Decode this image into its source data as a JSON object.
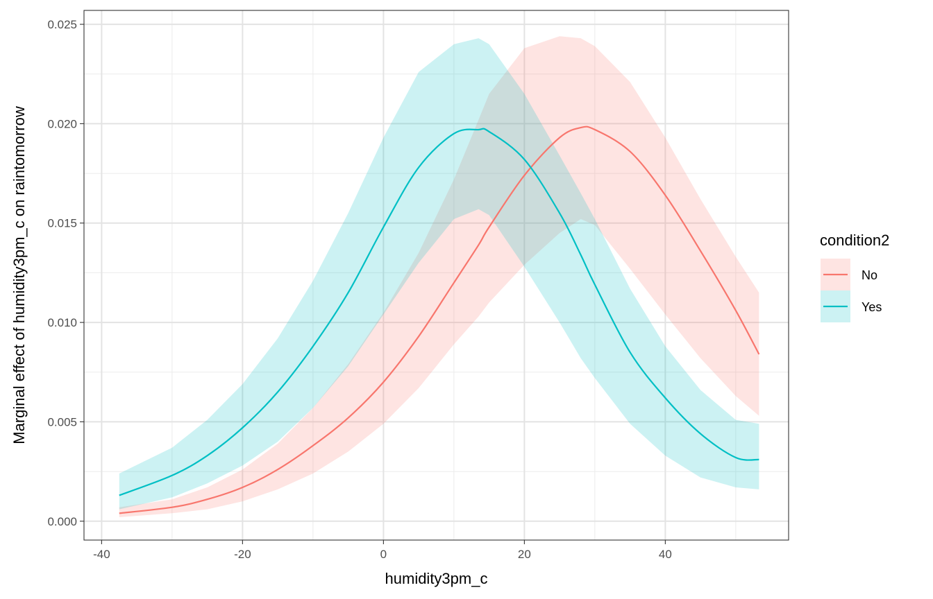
{
  "chart_data": {
    "type": "line",
    "title": "",
    "xlabel": "humidity3pm_c",
    "ylabel": "Marginal effect of humidity3pm_c on raintomorrow",
    "xlim": [
      -42.5,
      57.5
    ],
    "ylim": [
      -0.00095,
      0.0257
    ],
    "x_ticks": [
      -40,
      -20,
      0,
      20,
      40
    ],
    "x_tick_labels": [
      "-40",
      "-20",
      "0",
      "20",
      "40"
    ],
    "y_ticks": [
      0,
      0.005,
      0.01,
      0.015,
      0.02,
      0.025
    ],
    "y_tick_labels": [
      "0.000",
      "0.005",
      "0.010",
      "0.015",
      "0.020",
      "0.025"
    ],
    "x_minor": [
      -30,
      -10,
      10,
      30,
      50
    ],
    "y_minor": [
      0.0025,
      0.0075,
      0.0125,
      0.0175,
      0.0225
    ],
    "grid": true,
    "legend": {
      "title": "condition2",
      "position": "right",
      "entries": [
        "No",
        "Yes"
      ]
    },
    "x": [
      -37.5,
      -30,
      -25,
      -20,
      -15,
      -10,
      -5,
      0,
      5,
      10,
      13.5,
      15,
      20,
      25,
      28,
      30,
      35,
      40,
      45,
      50,
      53.3
    ],
    "series": [
      {
        "name": "No",
        "color": "#F8766D",
        "fill": "#FDE8E7",
        "values": [
          0.0004,
          0.0007,
          0.0011,
          0.0017,
          0.0026,
          0.0038,
          0.0052,
          0.007,
          0.0093,
          0.012,
          0.0139,
          0.0148,
          0.0174,
          0.0193,
          0.0198,
          0.0197,
          0.0186,
          0.0164,
          0.0136,
          0.0106,
          0.0084
        ],
        "lower": [
          0.0002,
          0.0004,
          0.0006,
          0.001,
          0.0016,
          0.0024,
          0.0035,
          0.0049,
          0.0067,
          0.0089,
          0.0103,
          0.011,
          0.0129,
          0.0145,
          0.0152,
          0.0149,
          0.0127,
          0.0104,
          0.0082,
          0.0063,
          0.0053
        ],
        "upper": [
          0.0007,
          0.0011,
          0.0017,
          0.0026,
          0.0039,
          0.0057,
          0.0079,
          0.0105,
          0.0135,
          0.0172,
          0.0202,
          0.0215,
          0.0238,
          0.0244,
          0.0243,
          0.0239,
          0.0221,
          0.0193,
          0.0162,
          0.0133,
          0.0115
        ]
      },
      {
        "name": "Yes",
        "color": "#00BFC4",
        "fill": "#E5F6F6",
        "values": [
          0.0013,
          0.0023,
          0.0033,
          0.0047,
          0.0065,
          0.0088,
          0.0115,
          0.0148,
          0.0178,
          0.0195,
          0.0197,
          0.0196,
          0.0182,
          0.0155,
          0.0134,
          0.0119,
          0.0085,
          0.0062,
          0.0044,
          0.0032,
          0.0031
        ],
        "lower": [
          0.0006,
          0.0012,
          0.0019,
          0.0028,
          0.004,
          0.0057,
          0.0078,
          0.0104,
          0.013,
          0.0152,
          0.0157,
          0.0154,
          0.0128,
          0.01,
          0.0082,
          0.0072,
          0.0049,
          0.0033,
          0.0022,
          0.0017,
          0.0016
        ],
        "upper": [
          0.0024,
          0.0037,
          0.0051,
          0.0069,
          0.0092,
          0.0121,
          0.0155,
          0.0193,
          0.0226,
          0.024,
          0.0243,
          0.024,
          0.0215,
          0.0184,
          0.0165,
          0.0152,
          0.0117,
          0.0088,
          0.0066,
          0.0051,
          0.0049
        ]
      }
    ]
  }
}
